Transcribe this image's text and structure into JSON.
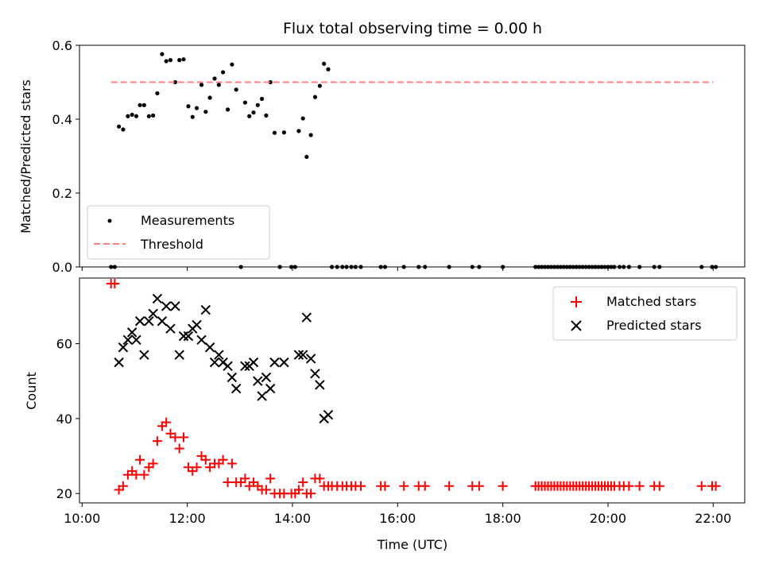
{
  "figure": {
    "title": "Flux total observing time = 0.00 h",
    "xlabel": "Time (UTC)",
    "xticks": [
      {
        "label": "10:00",
        "value": 10
      },
      {
        "label": "12:00",
        "value": 12
      },
      {
        "label": "14:00",
        "value": 14
      },
      {
        "label": "16:00",
        "value": 16
      },
      {
        "label": "18:00",
        "value": 18
      },
      {
        "label": "20:00",
        "value": 20
      },
      {
        "label": "22:00",
        "value": 22
      }
    ]
  },
  "chart_data": [
    {
      "type": "scatter",
      "ylabel": "Matched/Predicted stars",
      "xlim": [
        9.95,
        22.6
      ],
      "ylim": [
        0,
        0.6
      ],
      "yticks": [
        {
          "label": "0.0",
          "value": 0
        },
        {
          "label": "0.2",
          "value": 0.2
        },
        {
          "label": "0.4",
          "value": 0.4
        },
        {
          "label": "0.6",
          "value": 0.6
        }
      ],
      "legend_position": "lower-left",
      "series": [
        {
          "name": "Measurements",
          "color": "#000000",
          "marker": "dot",
          "points": [
            [
              10.55,
              0
            ],
            [
              10.62,
              0
            ],
            [
              10.7,
              0.38
            ],
            [
              10.78,
              0.372
            ],
            [
              10.87,
              0.408
            ],
            [
              10.95,
              0.412
            ],
            [
              11.03,
              0.408
            ],
            [
              11.1,
              0.438
            ],
            [
              11.18,
              0.438
            ],
            [
              11.27,
              0.408
            ],
            [
              11.35,
              0.41
            ],
            [
              11.43,
              0.47
            ],
            [
              11.52,
              0.576
            ],
            [
              11.6,
              0.557
            ],
            [
              11.68,
              0.56
            ],
            [
              11.77,
              0.5
            ],
            [
              11.85,
              0.56
            ],
            [
              11.93,
              0.562
            ],
            [
              12.02,
              0.435
            ],
            [
              12.1,
              0.406
            ],
            [
              12.18,
              0.43
            ],
            [
              12.27,
              0.493
            ],
            [
              12.35,
              0.42
            ],
            [
              12.43,
              0.458
            ],
            [
              12.52,
              0.51
            ],
            [
              12.6,
              0.493
            ],
            [
              12.68,
              0.527
            ],
            [
              12.77,
              0.426
            ],
            [
              12.85,
              0.548
            ],
            [
              12.93,
              0.48
            ],
            [
              13.02,
              0
            ],
            [
              13.1,
              0.445
            ],
            [
              13.18,
              0.408
            ],
            [
              13.26,
              0.418
            ],
            [
              13.34,
              0.438
            ],
            [
              13.42,
              0.455
            ],
            [
              13.5,
              0.41
            ],
            [
              13.58,
              0.5
            ],
            [
              13.66,
              0.363
            ],
            [
              13.76,
              0
            ],
            [
              13.84,
              0.364
            ],
            [
              13.98,
              0
            ],
            [
              14.05,
              0
            ],
            [
              14.12,
              0.368
            ],
            [
              14.2,
              0.402
            ],
            [
              14.27,
              0.298
            ],
            [
              14.35,
              0.357
            ],
            [
              14.43,
              0.46
            ],
            [
              14.52,
              0.49
            ],
            [
              14.6,
              0.55
            ],
            [
              14.68,
              0.535
            ],
            [
              14.75,
              0
            ],
            [
              14.85,
              0
            ],
            [
              14.95,
              0
            ],
            [
              15.03,
              0
            ],
            [
              15.12,
              0
            ],
            [
              15.2,
              0
            ],
            [
              15.3,
              0
            ],
            [
              15.68,
              0
            ],
            [
              15.76,
              0
            ],
            [
              16.12,
              0
            ],
            [
              16.4,
              0
            ],
            [
              16.52,
              0
            ],
            [
              16.98,
              0
            ],
            [
              17.42,
              0
            ],
            [
              17.55,
              0
            ],
            [
              18.0,
              0
            ],
            [
              18.62,
              0
            ],
            [
              18.68,
              0
            ],
            [
              18.74,
              0
            ],
            [
              18.8,
              0
            ],
            [
              18.86,
              0
            ],
            [
              18.92,
              0
            ],
            [
              18.98,
              0
            ],
            [
              19.04,
              0
            ],
            [
              19.1,
              0
            ],
            [
              19.16,
              0
            ],
            [
              19.22,
              0
            ],
            [
              19.28,
              0
            ],
            [
              19.34,
              0
            ],
            [
              19.4,
              0
            ],
            [
              19.46,
              0
            ],
            [
              19.52,
              0
            ],
            [
              19.58,
              0
            ],
            [
              19.64,
              0
            ],
            [
              19.7,
              0
            ],
            [
              19.76,
              0
            ],
            [
              19.82,
              0
            ],
            [
              19.88,
              0
            ],
            [
              19.94,
              0
            ],
            [
              20.0,
              0
            ],
            [
              20.06,
              0
            ],
            [
              20.12,
              0
            ],
            [
              20.22,
              0
            ],
            [
              20.3,
              0
            ],
            [
              20.4,
              0
            ],
            [
              20.6,
              0
            ],
            [
              20.88,
              0
            ],
            [
              20.98,
              0
            ],
            [
              21.78,
              0
            ],
            [
              21.98,
              0
            ],
            [
              22.05,
              0
            ]
          ]
        },
        {
          "name": "Threshold",
          "color": "#ff8080",
          "style": "dashed",
          "x": [
            10.55,
            22.0
          ],
          "y": [
            0.5,
            0.5
          ]
        }
      ]
    },
    {
      "type": "scatter",
      "ylabel": "Count",
      "xlim": [
        9.95,
        22.6
      ],
      "ylim": [
        17.5,
        77.5
      ],
      "yticks": [
        {
          "label": "20",
          "value": 20
        },
        {
          "label": "40",
          "value": 40
        },
        {
          "label": "60",
          "value": 60
        }
      ],
      "legend_position": "top-right",
      "series": [
        {
          "name": "Matched stars",
          "color": "#ff0000",
          "marker": "plus",
          "points": [
            [
              10.55,
              76
            ],
            [
              10.62,
              76
            ],
            [
              10.7,
              21
            ],
            [
              10.78,
              22
            ],
            [
              10.87,
              25
            ],
            [
              10.95,
              26
            ],
            [
              11.03,
              25
            ],
            [
              11.1,
              29
            ],
            [
              11.18,
              25
            ],
            [
              11.27,
              27
            ],
            [
              11.35,
              28
            ],
            [
              11.43,
              34
            ],
            [
              11.52,
              38
            ],
            [
              11.6,
              39
            ],
            [
              11.68,
              36
            ],
            [
              11.77,
              35
            ],
            [
              11.85,
              32
            ],
            [
              11.93,
              35
            ],
            [
              12.02,
              27
            ],
            [
              12.1,
              26
            ],
            [
              12.18,
              27
            ],
            [
              12.27,
              30
            ],
            [
              12.35,
              29
            ],
            [
              12.43,
              27
            ],
            [
              12.52,
              28
            ],
            [
              12.6,
              28
            ],
            [
              12.68,
              29
            ],
            [
              12.77,
              23
            ],
            [
              12.85,
              28
            ],
            [
              12.93,
              23
            ],
            [
              13.02,
              23
            ],
            [
              13.1,
              24
            ],
            [
              13.18,
              22
            ],
            [
              13.26,
              23
            ],
            [
              13.34,
              22
            ],
            [
              13.42,
              21
            ],
            [
              13.5,
              21
            ],
            [
              13.58,
              24
            ],
            [
              13.66,
              20
            ],
            [
              13.76,
              20
            ],
            [
              13.84,
              20
            ],
            [
              13.98,
              20
            ],
            [
              14.05,
              20
            ],
            [
              14.12,
              21
            ],
            [
              14.2,
              23
            ],
            [
              14.27,
              20
            ],
            [
              14.35,
              20
            ],
            [
              14.43,
              24
            ],
            [
              14.52,
              24
            ],
            [
              14.6,
              22
            ],
            [
              14.68,
              22
            ],
            [
              14.75,
              22
            ],
            [
              14.85,
              22
            ],
            [
              14.95,
              22
            ],
            [
              15.03,
              22
            ],
            [
              15.12,
              22
            ],
            [
              15.2,
              22
            ],
            [
              15.3,
              22
            ],
            [
              15.68,
              22
            ],
            [
              15.76,
              22
            ],
            [
              16.12,
              22
            ],
            [
              16.4,
              22
            ],
            [
              16.52,
              22
            ],
            [
              16.98,
              22
            ],
            [
              17.42,
              22
            ],
            [
              17.55,
              22
            ],
            [
              18.0,
              22
            ],
            [
              18.62,
              22
            ],
            [
              18.68,
              22
            ],
            [
              18.74,
              22
            ],
            [
              18.8,
              22
            ],
            [
              18.86,
              22
            ],
            [
              18.92,
              22
            ],
            [
              18.98,
              22
            ],
            [
              19.04,
              22
            ],
            [
              19.1,
              22
            ],
            [
              19.16,
              22
            ],
            [
              19.22,
              22
            ],
            [
              19.28,
              22
            ],
            [
              19.34,
              22
            ],
            [
              19.4,
              22
            ],
            [
              19.46,
              22
            ],
            [
              19.52,
              22
            ],
            [
              19.58,
              22
            ],
            [
              19.64,
              22
            ],
            [
              19.7,
              22
            ],
            [
              19.76,
              22
            ],
            [
              19.82,
              22
            ],
            [
              19.88,
              22
            ],
            [
              19.94,
              22
            ],
            [
              20.0,
              22
            ],
            [
              20.06,
              22
            ],
            [
              20.12,
              22
            ],
            [
              20.22,
              22
            ],
            [
              20.3,
              22
            ],
            [
              20.4,
              22
            ],
            [
              20.6,
              22
            ],
            [
              20.88,
              22
            ],
            [
              20.98,
              22
            ],
            [
              21.78,
              22
            ],
            [
              21.98,
              22
            ],
            [
              22.05,
              22
            ]
          ]
        },
        {
          "name": "Predicted stars",
          "color": "#000000",
          "marker": "x",
          "points": [
            [
              10.7,
              55
            ],
            [
              10.78,
              59
            ],
            [
              10.87,
              61
            ],
            [
              10.95,
              63
            ],
            [
              11.03,
              61
            ],
            [
              11.1,
              66
            ],
            [
              11.18,
              57
            ],
            [
              11.27,
              66
            ],
            [
              11.35,
              68
            ],
            [
              11.43,
              72
            ],
            [
              11.52,
              66
            ],
            [
              11.6,
              70
            ],
            [
              11.68,
              64
            ],
            [
              11.77,
              70
            ],
            [
              11.85,
              57
            ],
            [
              11.93,
              62
            ],
            [
              12.02,
              62
            ],
            [
              12.1,
              64
            ],
            [
              12.18,
              65
            ],
            [
              12.27,
              61
            ],
            [
              12.35,
              69
            ],
            [
              12.43,
              59
            ],
            [
              12.52,
              55
            ],
            [
              12.6,
              57
            ],
            [
              12.68,
              55
            ],
            [
              12.77,
              54
            ],
            [
              12.85,
              51
            ],
            [
              12.93,
              48
            ],
            [
              13.1,
              54
            ],
            [
              13.18,
              54
            ],
            [
              13.26,
              55
            ],
            [
              13.34,
              50
            ],
            [
              13.42,
              46
            ],
            [
              13.5,
              51
            ],
            [
              13.58,
              48
            ],
            [
              13.66,
              55
            ],
            [
              13.84,
              55
            ],
            [
              14.12,
              57
            ],
            [
              14.2,
              57
            ],
            [
              14.27,
              67
            ],
            [
              14.35,
              56
            ],
            [
              14.43,
              52
            ],
            [
              14.52,
              49
            ],
            [
              14.6,
              40
            ],
            [
              14.68,
              41
            ]
          ]
        }
      ]
    }
  ]
}
